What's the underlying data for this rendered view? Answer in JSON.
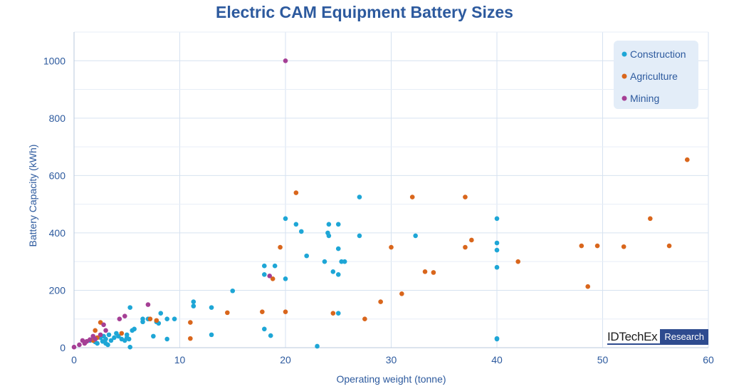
{
  "chart_data": {
    "type": "scatter",
    "title": "Electric CAM Equipment Battery Sizes",
    "xlabel": "Operating weight (tonne)",
    "ylabel": "Battery Capacity (kWh)",
    "xlim": [
      0,
      60
    ],
    "ylim": [
      0,
      1100
    ],
    "xticks": [
      "0",
      "10",
      "20",
      "30",
      "40",
      "50",
      "60"
    ],
    "yticks": [
      "0",
      "200",
      "400",
      "600",
      "800",
      "1000"
    ],
    "grid": true,
    "legend_position": "top-right",
    "series": [
      {
        "name": "Construction",
        "color": "#1ea6d6",
        "points": [
          [
            1.5,
            25
          ],
          [
            1.8,
            30
          ],
          [
            2,
            20
          ],
          [
            2.2,
            15
          ],
          [
            2.5,
            35
          ],
          [
            2.7,
            22
          ],
          [
            2.8,
            40
          ],
          [
            3,
            30
          ],
          [
            3,
            15
          ],
          [
            3.2,
            10
          ],
          [
            3.3,
            45
          ],
          [
            3.5,
            25
          ],
          [
            3.8,
            35
          ],
          [
            4,
            50
          ],
          [
            4.2,
            40
          ],
          [
            4.5,
            30
          ],
          [
            4.8,
            25
          ],
          [
            5,
            35
          ],
          [
            5,
            45
          ],
          [
            5.2,
            30
          ],
          [
            5.3,
            140
          ],
          [
            5.5,
            60
          ],
          [
            5.7,
            65
          ],
          [
            5.3,
            2
          ],
          [
            6.5,
            90
          ],
          [
            6.5,
            100
          ],
          [
            7,
            100
          ],
          [
            7.5,
            40
          ],
          [
            7.8,
            90
          ],
          [
            8,
            85
          ],
          [
            8.2,
            120
          ],
          [
            8.8,
            30
          ],
          [
            8.8,
            100
          ],
          [
            9.5,
            100
          ],
          [
            11.3,
            145
          ],
          [
            11.3,
            160
          ],
          [
            13,
            140
          ],
          [
            13,
            45
          ],
          [
            15,
            198
          ],
          [
            18,
            255
          ],
          [
            18,
            285
          ],
          [
            18,
            65
          ],
          [
            18.6,
            42
          ],
          [
            19,
            285
          ],
          [
            20,
            240
          ],
          [
            20,
            450
          ],
          [
            21,
            430
          ],
          [
            21.5,
            405
          ],
          [
            22,
            320
          ],
          [
            23,
            5
          ],
          [
            23.7,
            300
          ],
          [
            24,
            400
          ],
          [
            24.1,
            390
          ],
          [
            24.1,
            430
          ],
          [
            24.5,
            265
          ],
          [
            25,
            345
          ],
          [
            25,
            430
          ],
          [
            25,
            255
          ],
          [
            25,
            120
          ],
          [
            25.3,
            300
          ],
          [
            25.6,
            300
          ],
          [
            27,
            525
          ],
          [
            27,
            390
          ],
          [
            32.3,
            390
          ],
          [
            40,
            450
          ],
          [
            40,
            365
          ],
          [
            40,
            340
          ],
          [
            40,
            280
          ],
          [
            40,
            30
          ],
          [
            40,
            32
          ]
        ]
      },
      {
        "name": "Agriculture",
        "color": "#d9661c",
        "points": [
          [
            1.8,
            25
          ],
          [
            2,
            60
          ],
          [
            2.2,
            35
          ],
          [
            2.5,
            88
          ],
          [
            4.5,
            50
          ],
          [
            7.2,
            100
          ],
          [
            7.8,
            95
          ],
          [
            11,
            88
          ],
          [
            11,
            32
          ],
          [
            14.5,
            122
          ],
          [
            17.8,
            125
          ],
          [
            18.8,
            240
          ],
          [
            19.5,
            350
          ],
          [
            20,
            125
          ],
          [
            21,
            540
          ],
          [
            24.5,
            120
          ],
          [
            27.5,
            100
          ],
          [
            29,
            160
          ],
          [
            30,
            350
          ],
          [
            31,
            188
          ],
          [
            32,
            525
          ],
          [
            33.2,
            265
          ],
          [
            34,
            262
          ],
          [
            37,
            525
          ],
          [
            37,
            350
          ],
          [
            37.6,
            375
          ],
          [
            42,
            300
          ],
          [
            48,
            355
          ],
          [
            48.6,
            213
          ],
          [
            49.5,
            355
          ],
          [
            52,
            352
          ],
          [
            54.5,
            450
          ],
          [
            56.3,
            355
          ],
          [
            58,
            655
          ]
        ]
      },
      {
        "name": "Mining",
        "color": "#a53f95",
        "points": [
          [
            0,
            2
          ],
          [
            0.5,
            10
          ],
          [
            0.8,
            25
          ],
          [
            1,
            15
          ],
          [
            1.2,
            22
          ],
          [
            1.5,
            28
          ],
          [
            1.8,
            40
          ],
          [
            2,
            30
          ],
          [
            2.5,
            45
          ],
          [
            2.8,
            80
          ],
          [
            3,
            60
          ],
          [
            4.3,
            100
          ],
          [
            4.8,
            110
          ],
          [
            7,
            150
          ],
          [
            18.5,
            250
          ],
          [
            20,
            1000
          ]
        ]
      }
    ]
  },
  "brand": {
    "name": "IDTechEx",
    "tag": "Research"
  }
}
